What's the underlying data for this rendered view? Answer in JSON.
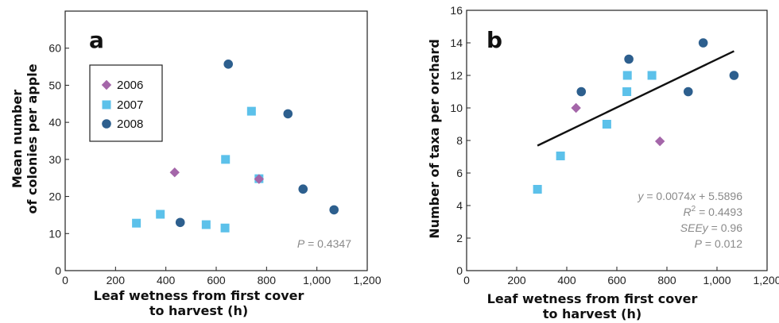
{
  "colors": {
    "2006": "#a466a9",
    "2007": "#5cc1ea",
    "2008": "#2d5f8e",
    "axis": "#222222",
    "annotation": "#8a8a8a",
    "fit": "#111111"
  },
  "chart_data": [
    {
      "type": "scatter",
      "panel_label": "a",
      "xlabel": [
        "Leaf wetness from first cover",
        "to harvest (h)"
      ],
      "ylabel": [
        "Mean number",
        "of colonies per apple"
      ],
      "xlim": [
        0,
        1200
      ],
      "ylim": [
        0,
        70
      ],
      "xticks": [
        0,
        200,
        400,
        600,
        800,
        1000,
        1200
      ],
      "xtick_labels": [
        "0",
        "200",
        "400",
        "600",
        "800",
        "1,000",
        "1,200"
      ],
      "yticks": [
        0,
        10,
        20,
        30,
        40,
        50,
        60
      ],
      "ytick_labels": [
        "0",
        "10",
        "20",
        "30",
        "40",
        "50",
        "60"
      ],
      "legend": {
        "placement": "upper-left",
        "entries": [
          "2006",
          "2007",
          "2008"
        ]
      },
      "series": [
        {
          "name": "2006",
          "marker": "diamond",
          "x": [
            435,
            770
          ],
          "y": [
            26.5,
            24.7
          ]
        },
        {
          "name": "2007",
          "marker": "square",
          "x": [
            283,
            378,
            560,
            635,
            637,
            740,
            770
          ],
          "y": [
            12.8,
            15.2,
            12.4,
            11.5,
            30,
            43,
            24.8
          ]
        },
        {
          "name": "2008",
          "marker": "circle",
          "x": [
            457,
            648,
            885,
            945,
            1068
          ],
          "y": [
            13,
            55.7,
            42.3,
            22,
            16.4
          ]
        }
      ],
      "annotations": {
        "p_label": "P",
        "p_value": " = 0.4347"
      }
    },
    {
      "type": "scatter",
      "panel_label": "b",
      "xlabel": [
        "Leaf wetness from first cover",
        "to harvest (h)"
      ],
      "ylabel": [
        "Number of taxa per orchard"
      ],
      "xlim": [
        0,
        1200
      ],
      "ylim": [
        0,
        16
      ],
      "xticks": [
        0,
        200,
        400,
        600,
        800,
        1000,
        1200
      ],
      "xtick_labels": [
        "0",
        "200",
        "400",
        "600",
        "800",
        "1,000",
        "1,200"
      ],
      "yticks": [
        0,
        2,
        4,
        6,
        8,
        10,
        12,
        14,
        16
      ],
      "ytick_labels": [
        "0",
        "2",
        "4",
        "6",
        "8",
        "10",
        "12",
        "14",
        "16"
      ],
      "series": [
        {
          "name": "2006",
          "marker": "diamond",
          "x": [
            437,
            772
          ],
          "y": [
            10,
            7.95
          ]
        },
        {
          "name": "2007",
          "marker": "square",
          "x": [
            283,
            375,
            560,
            640,
            642,
            740
          ],
          "y": [
            5,
            7.05,
            9,
            11,
            12,
            12
          ]
        },
        {
          "name": "2008",
          "marker": "circle",
          "x": [
            458,
            648,
            885,
            945,
            1068
          ],
          "y": [
            11,
            13,
            11,
            14,
            12
          ]
        }
      ],
      "fit_line": {
        "slope": 0.0074,
        "intercept": 5.5896,
        "x_range": [
          283,
          1068
        ]
      },
      "annotations": {
        "eq_lhs": "y",
        "eq_eq": " = 0.0074",
        "eq_x": "x",
        "eq_rest": " + 5.5896",
        "r2_lhs": "R",
        "r2_sup": "2",
        "r2_rest": " = 0.4493",
        "see_lhs": "SEEy",
        "see_rest": " = 0.96",
        "p_label": "P",
        "p_value": " = 0.012"
      }
    }
  ]
}
